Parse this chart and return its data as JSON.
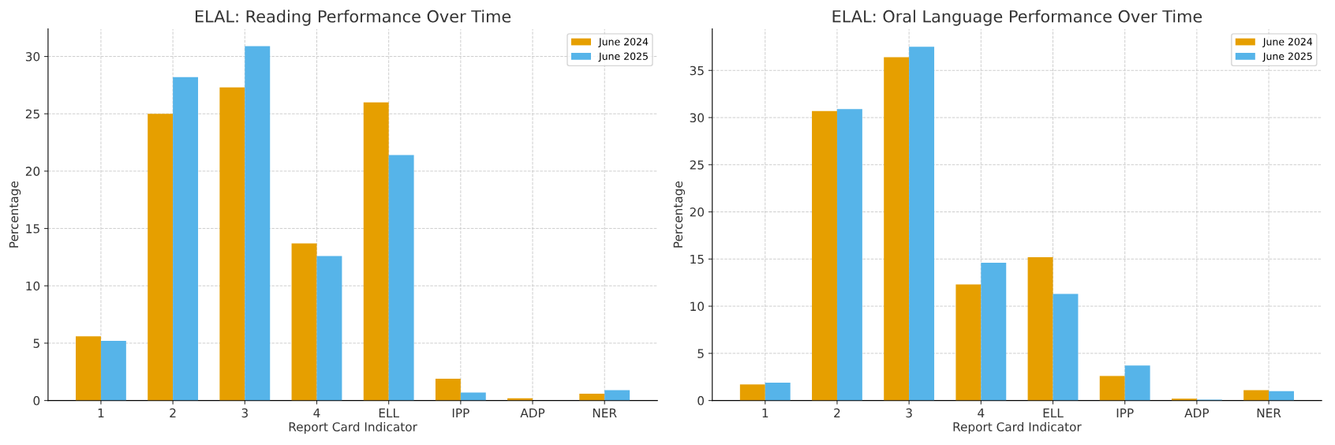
{
  "chart_data": [
    {
      "type": "bar",
      "title": "ELAL: Reading Performance Over Time",
      "xlabel": "Report Card Indicator",
      "ylabel": "Percentage",
      "categories": [
        "1",
        "2",
        "3",
        "4",
        "ELL",
        "IPP",
        "ADP",
        "NER"
      ],
      "series": [
        {
          "name": "June 2024",
          "color": "#e69f00",
          "values": [
            5.6,
            25.0,
            27.3,
            13.7,
            26.0,
            1.9,
            0.2,
            0.6
          ]
        },
        {
          "name": "June 2025",
          "color": "#56b4e9",
          "values": [
            5.2,
            28.2,
            30.9,
            12.6,
            21.4,
            0.7,
            0.0,
            0.9
          ]
        }
      ],
      "ylim": [
        0,
        32.4
      ],
      "yticks": [
        0,
        5,
        10,
        15,
        20,
        25,
        30
      ],
      "grid": true,
      "legend": "top right"
    },
    {
      "type": "bar",
      "title": "ELAL: Oral Language Performance Over Time",
      "xlabel": "Report Card Indicator",
      "ylabel": "Percentage",
      "categories": [
        "1",
        "2",
        "3",
        "4",
        "ELL",
        "IPP",
        "ADP",
        "NER"
      ],
      "series": [
        {
          "name": "June 2024",
          "color": "#e69f00",
          "values": [
            1.7,
            30.7,
            36.4,
            12.3,
            15.2,
            2.6,
            0.2,
            1.1
          ]
        },
        {
          "name": "June 2025",
          "color": "#56b4e9",
          "values": [
            1.9,
            30.9,
            37.5,
            14.6,
            11.3,
            3.7,
            0.1,
            1.0
          ]
        }
      ],
      "ylim": [
        0,
        39.4
      ],
      "yticks": [
        0,
        5,
        10,
        15,
        20,
        25,
        30,
        35
      ],
      "grid": true,
      "legend": "top right"
    }
  ]
}
